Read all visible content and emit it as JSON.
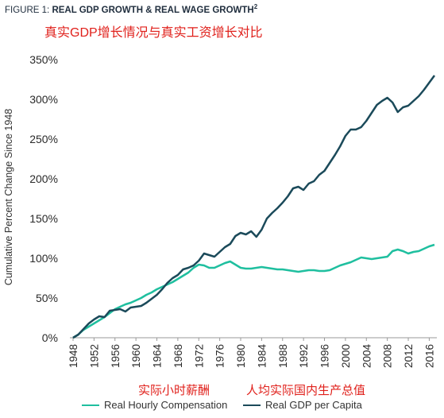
{
  "figure": {
    "title_prefix": "FIGURE 1: ",
    "title_main": "REAL GDP GROWTH & REAL WAGE GROWTH",
    "title_sup": "2",
    "subtitle_cn": "真实GDP增长情况与真实工资增长对比"
  },
  "annotations": {
    "wage_cn": "实际小时薪酬",
    "gdp_cn": "人均实际国内生产总值"
  },
  "chart_data": {
    "type": "line",
    "title": "REAL GDP GROWTH & REAL WAGE GROWTH",
    "xlabel": "",
    "ylabel": "Cumulative Percent Change Since 1948",
    "xlim": [
      1948,
      2017
    ],
    "ylim": [
      0,
      350
    ],
    "x_ticks": [
      "1948",
      "1952",
      "1956",
      "1960",
      "1964",
      "1968",
      "1972",
      "1976",
      "1980",
      "1984",
      "1988",
      "1992",
      "1996",
      "2000",
      "2004",
      "2008",
      "2012",
      "2016"
    ],
    "y_ticks": [
      "0%",
      "50%",
      "100%",
      "150%",
      "200%",
      "250%",
      "300%",
      "350%"
    ],
    "y_tick_values": [
      0,
      50,
      100,
      150,
      200,
      250,
      300,
      350
    ],
    "grid": false,
    "legend_position": "bottom",
    "x": [
      1948,
      1949,
      1950,
      1951,
      1952,
      1953,
      1954,
      1955,
      1956,
      1957,
      1958,
      1959,
      1960,
      1961,
      1962,
      1963,
      1964,
      1965,
      1966,
      1967,
      1968,
      1969,
      1970,
      1971,
      1972,
      1973,
      1974,
      1975,
      1976,
      1977,
      1978,
      1979,
      1980,
      1981,
      1982,
      1983,
      1984,
      1985,
      1986,
      1987,
      1988,
      1989,
      1990,
      1991,
      1992,
      1993,
      1994,
      1995,
      1996,
      1997,
      1998,
      1999,
      2000,
      2001,
      2002,
      2003,
      2004,
      2005,
      2006,
      2007,
      2008,
      2009,
      2010,
      2011,
      2012,
      2013,
      2014,
      2015,
      2016,
      2017
    ],
    "series": [
      {
        "name": "Real Hourly Compensation",
        "color": "#1fbf9f",
        "values": [
          0,
          4,
          10,
          14,
          18,
          22,
          26,
          31,
          36,
          39,
          42,
          44,
          47,
          50,
          54,
          57,
          61,
          64,
          67,
          70,
          74,
          78,
          82,
          88,
          92,
          91,
          88,
          88,
          91,
          94,
          96,
          92,
          88,
          87,
          87,
          88,
          89,
          88,
          87,
          86,
          86,
          85,
          84,
          83,
          84,
          85,
          85,
          84,
          84,
          85,
          88,
          91,
          93,
          95,
          98,
          101,
          100,
          99,
          100,
          101,
          102,
          109,
          111,
          109,
          106,
          108,
          109,
          112,
          115,
          117
        ]
      },
      {
        "name": "Real GDP per Capita",
        "color": "#1b4a5a",
        "values": [
          0,
          4,
          11,
          18,
          23,
          27,
          26,
          34,
          35,
          36,
          33,
          38,
          39,
          40,
          44,
          49,
          54,
          61,
          69,
          75,
          79,
          86,
          88,
          91,
          97,
          106,
          104,
          102,
          108,
          114,
          118,
          128,
          132,
          130,
          134,
          127,
          136,
          150,
          157,
          163,
          170,
          178,
          188,
          190,
          186,
          194,
          197,
          205,
          210,
          220,
          230,
          241,
          254,
          262,
          262,
          265,
          273,
          283,
          293,
          298,
          302,
          296,
          284,
          290,
          292,
          298,
          304,
          312,
          321,
          330
        ]
      }
    ]
  }
}
